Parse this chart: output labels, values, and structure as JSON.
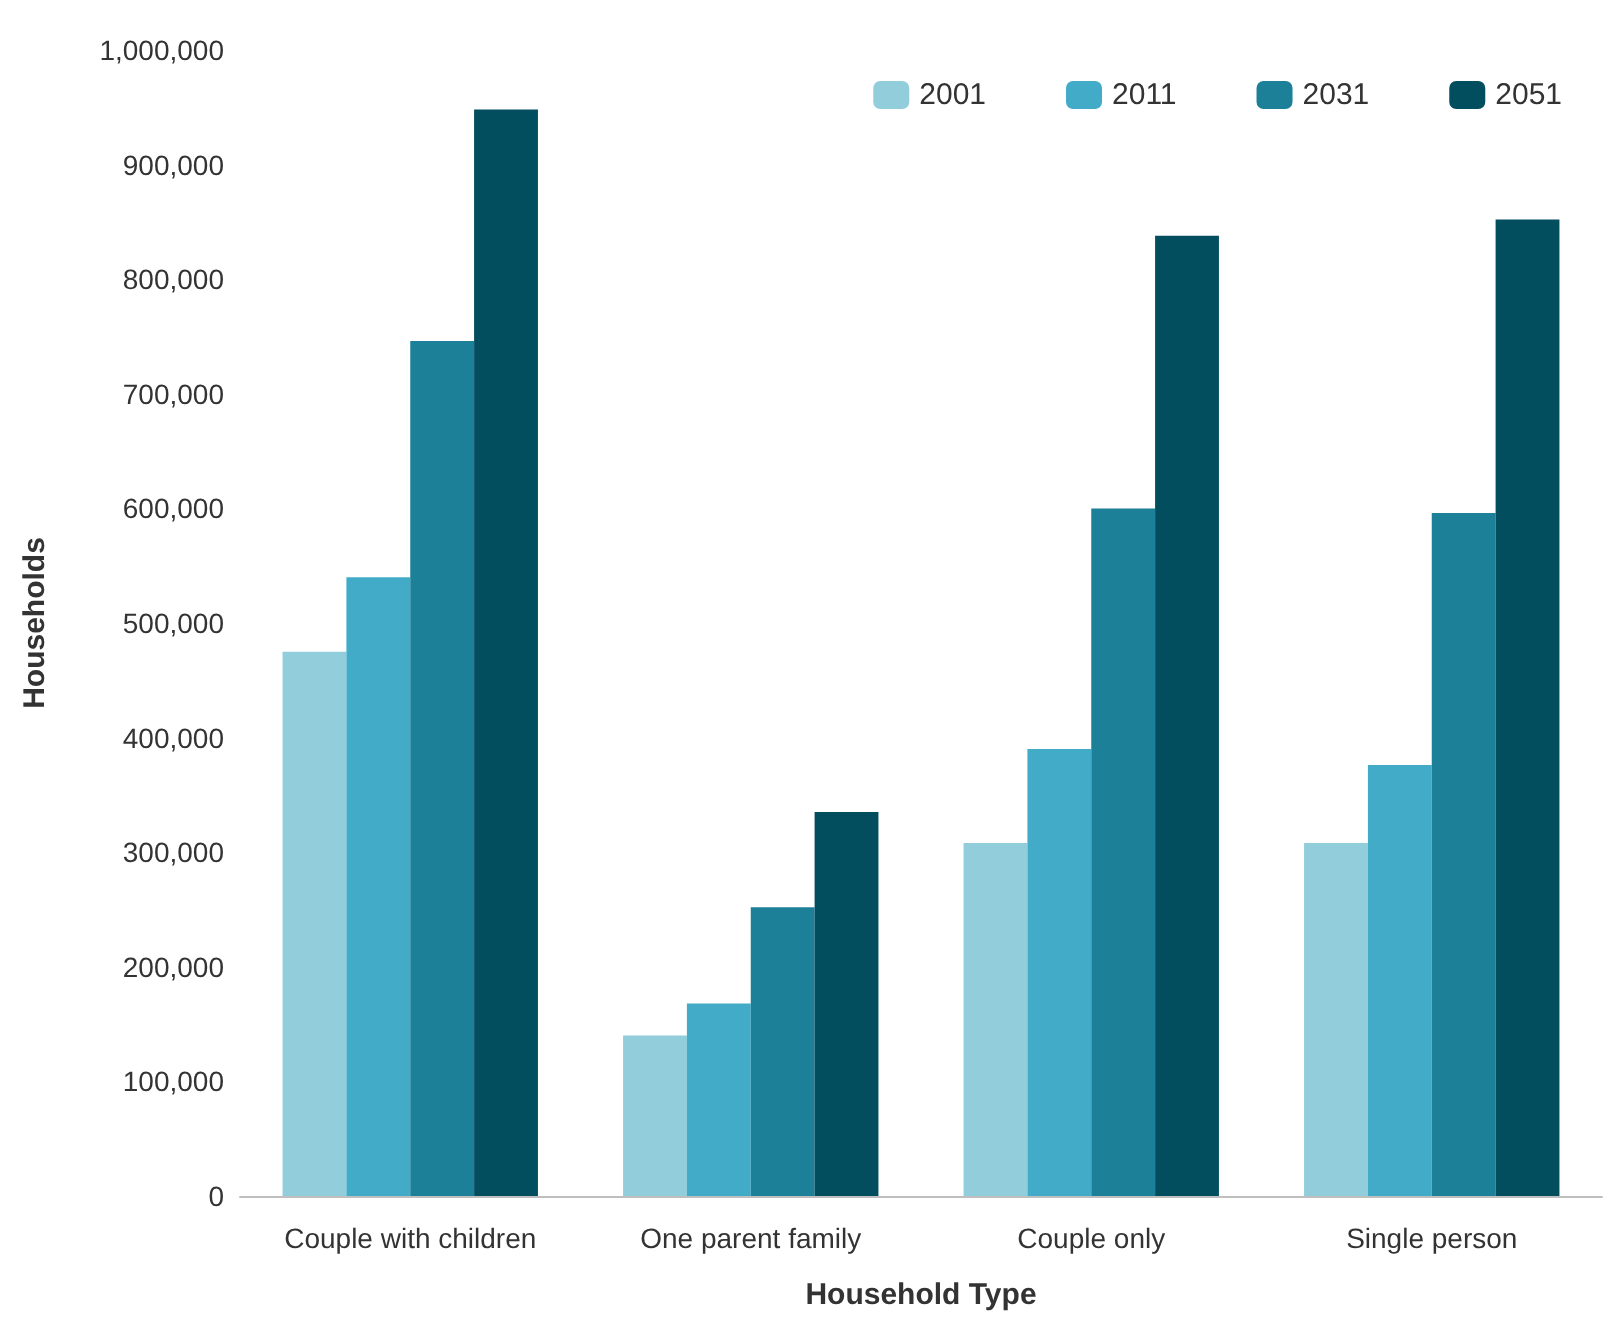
{
  "chart_data": {
    "type": "bar",
    "xlabel": "Household Type",
    "ylabel": "Households",
    "categories": [
      "Couple with children",
      "One parent family",
      "Couple only",
      "Single person"
    ],
    "series": [
      {
        "name": "2001",
        "color": "#92cddc",
        "values": [
          475000,
          140000,
          308000,
          308000
        ]
      },
      {
        "name": "2011",
        "color": "#42acc8",
        "values": [
          540000,
          168000,
          390000,
          376000
        ]
      },
      {
        "name": "2031",
        "color": "#1b8098",
        "values": [
          746000,
          252000,
          600000,
          596000
        ]
      },
      {
        "name": "2051",
        "color": "#024d5e",
        "values": [
          948000,
          335000,
          838000,
          852000
        ]
      }
    ],
    "ylim": [
      0,
      1000000
    ],
    "yticks": [
      0,
      {
        "value": 100000,
        "label": "100,000"
      },
      {
        "value": 200000,
        "label": "200,000"
      },
      {
        "value": 300000,
        "label": "300,000"
      },
      {
        "value": 400000,
        "label": "400,000"
      },
      {
        "value": 500000,
        "label": "500,000"
      },
      {
        "value": 600000,
        "label": "600,000"
      },
      {
        "value": 700000,
        "label": "700,000"
      },
      {
        "value": 800000,
        "label": "800,000"
      },
      {
        "value": 900000,
        "label": "900,000"
      },
      {
        "value": 1000000,
        "label": "1,000,000"
      }
    ],
    "grid": false,
    "legend": "top right"
  }
}
